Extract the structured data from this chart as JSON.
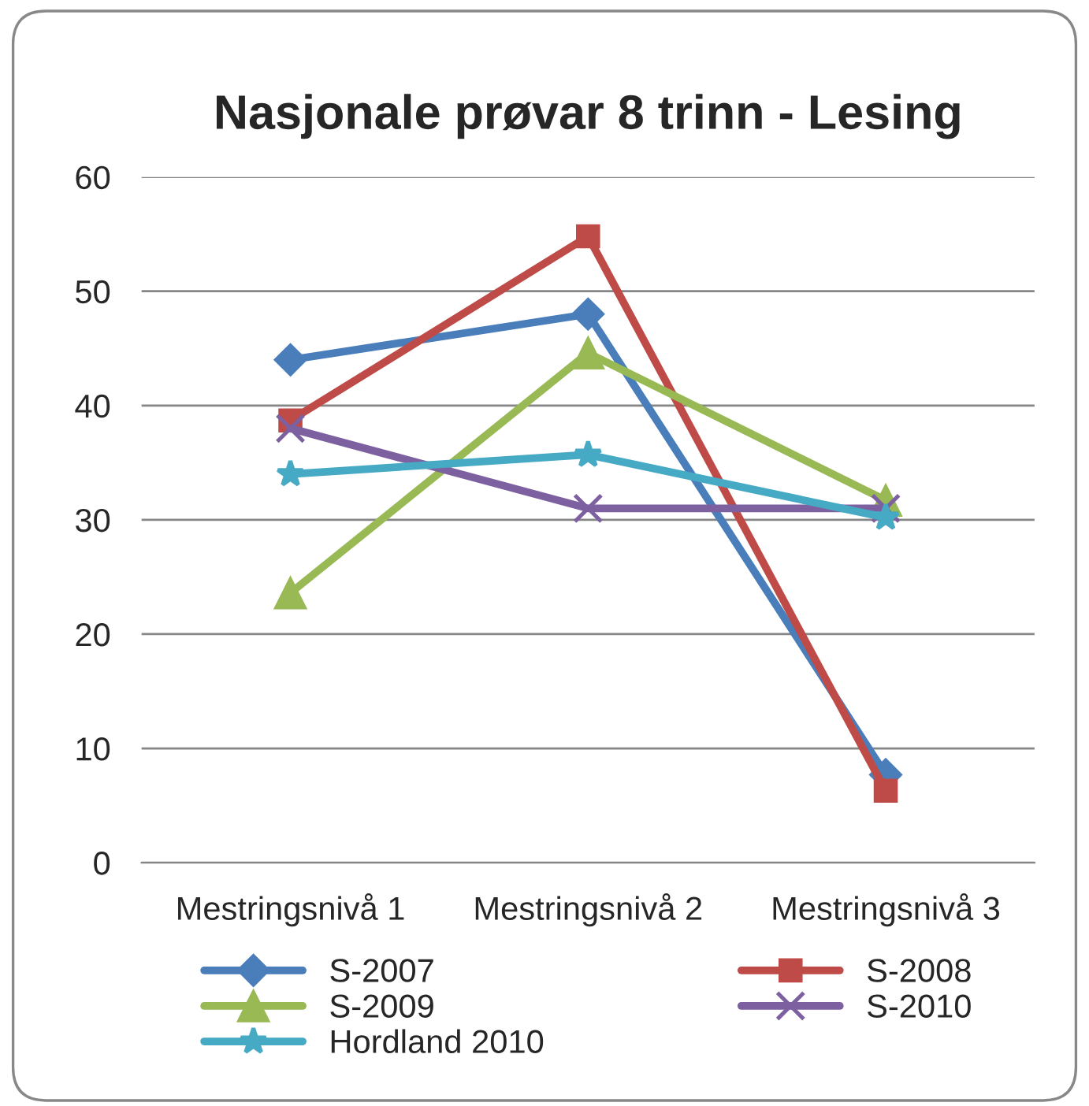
{
  "chart_data": {
    "type": "line",
    "title": "Nasjonale prøvar 8 trinn - Lesing",
    "categories": [
      "Mestringsnivå 1",
      "Mestringsnivå 2",
      "Mestringsnivå 3"
    ],
    "series": [
      {
        "name": "S-2007",
        "color": "#4a7ebb",
        "marker": "diamond",
        "values": [
          44,
          48,
          7.7
        ]
      },
      {
        "name": "S-2008",
        "color": "#be4b48",
        "marker": "square",
        "values": [
          38.7,
          54.8,
          6.3
        ]
      },
      {
        "name": "S-2009",
        "color": "#98b954",
        "marker": "triangle",
        "values": [
          23.6,
          44.6,
          31.7
        ]
      },
      {
        "name": "S-2010",
        "color": "#7d60a0",
        "marker": "cross",
        "values": [
          38,
          31,
          31
        ]
      },
      {
        "name": "Hordland 2010",
        "color": "#46aac5",
        "marker": "star",
        "values": [
          34,
          35.7,
          30.2
        ]
      }
    ],
    "ylim": [
      0,
      60
    ],
    "yticks": [
      0,
      10,
      20,
      30,
      40,
      50,
      60
    ],
    "grid": "y",
    "legend": "bottom",
    "line_style": "solid"
  }
}
